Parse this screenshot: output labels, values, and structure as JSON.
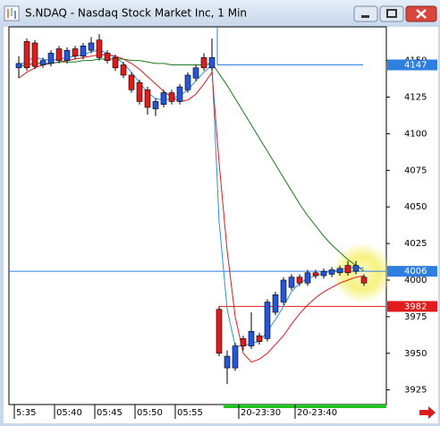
{
  "chart_data": {
    "type": "candlestick",
    "title": "S.NDAQ - Nasdaq Stock Market Inc, 1 Min",
    "categories": [
      "5:35",
      null,
      null,
      null,
      null,
      "05:40",
      null,
      null,
      null,
      null,
      "05:45",
      null,
      null,
      null,
      null,
      "05:50",
      null,
      null,
      null,
      null,
      "05:55",
      null,
      null,
      null,
      null,
      null,
      null,
      null,
      "20-23:30",
      null,
      null,
      null,
      null,
      null,
      null,
      "20-23:40",
      null,
      null,
      null,
      null,
      null,
      null,
      null,
      null
    ],
    "open": [
      4145,
      4163,
      4162,
      4147,
      4148,
      4158,
      4150,
      4158,
      4153,
      4157,
      4164,
      4155,
      4152,
      4147,
      4140,
      4135,
      4130,
      4117,
      4120,
      4128,
      4122,
      4130,
      4138,
      4152,
      4145,
      3980,
      3940,
      3940,
      3960,
      3955,
      3962,
      3960,
      3978,
      3985,
      3995,
      4002,
      3998,
      4005,
      4003,
      4004,
      4005,
      4010,
      4006,
      4002
    ],
    "high": [
      4153,
      4165,
      4164,
      4152,
      4157,
      4160,
      4159,
      4160,
      4162,
      4166,
      4168,
      4157,
      4154,
      4149,
      4142,
      4137,
      4132,
      4124,
      4130,
      4130,
      4134,
      4142,
      4147,
      4155,
      4165,
      3982,
      3952,
      3957,
      3962,
      3978,
      3964,
      3987,
      3992,
      4002,
      4004,
      4004,
      4007,
      4007,
      4008,
      4009,
      4010,
      4013,
      4013,
      4004
    ],
    "low": [
      4138,
      4143,
      4144,
      4145,
      4146,
      4148,
      4148,
      4151,
      4151,
      4155,
      4150,
      4148,
      4143,
      4138,
      4128,
      4120,
      4113,
      4112,
      4118,
      4120,
      4120,
      4128,
      4136,
      4143,
      4143,
      3948,
      3929,
      3938,
      3952,
      3953,
      3956,
      3958,
      3976,
      3983,
      3993,
      3996,
      3996,
      4001,
      4001,
      4002,
      4003,
      4003,
      4004,
      3996
    ],
    "close": [
      4148,
      4145,
      4146,
      4150,
      4155,
      4150,
      4157,
      4153,
      4160,
      4162,
      4152,
      4150,
      4145,
      4140,
      4130,
      4122,
      4118,
      4122,
      4128,
      4122,
      4132,
      4140,
      4145,
      4145,
      4152,
      3950,
      3948,
      3955,
      3955,
      3965,
      3958,
      3985,
      3990,
      4000,
      4002,
      3998,
      4005,
      4003,
      4006,
      4007,
      4008,
      4005,
      4010,
      3998
    ],
    "up_color": "#2855d8",
    "down_color": "#e01b1b",
    "lines": [
      {
        "color": "#2f8fe0",
        "values": [
          4146,
          4150,
          4152,
          4151,
          4150,
          4151,
          4152,
          4153,
          4154,
          4156,
          4157,
          4155,
          4152,
          4148,
          4142,
          4135,
          4128,
          4124,
          4123,
          4124,
          4126,
          4130,
          4136,
          4142,
          4147,
          4040,
          3980,
          3955,
          3955,
          3957,
          3958,
          3965,
          3973,
          3982,
          3992,
          3998,
          4001,
          4003,
          4005,
          4006,
          4007,
          4008,
          4009,
          4008
        ]
      },
      {
        "color": "#e01b1b",
        "values": [
          4138,
          4142,
          4145,
          4147,
          4148,
          4149,
          4150,
          4151,
          4152,
          4153,
          4154,
          4154,
          4153,
          4151,
          4148,
          4144,
          4139,
          4134,
          4129,
          4125,
          4122,
          4123,
          4127,
          4134,
          4142,
          4080,
          4020,
          3975,
          3950,
          3944,
          3946,
          3950,
          3956,
          3962,
          3970,
          3977,
          3983,
          3988,
          3992,
          3995,
          3998,
          4000,
          4002,
          4003
        ]
      },
      {
        "color": "#1f7a1f",
        "values": [
          4146,
          4147,
          4148,
          4148,
          4148,
          4149,
          4149,
          4149,
          4150,
          4150,
          4151,
          4151,
          4151,
          4151,
          4150,
          4150,
          4149,
          4148,
          4148,
          4147,
          4147,
          4147,
          4147,
          4147,
          4148,
          4141,
          4133,
          4124,
          4115,
          4106,
          4097,
          4088,
          4079,
          4070,
          4061,
          4052,
          4044,
          4037,
          4030,
          4024,
          4019,
          4014,
          4010,
          4006
        ]
      }
    ],
    "levels": [
      {
        "value": 4147,
        "color": "#2f7fe0"
      },
      {
        "value": 4006,
        "color": "#2f7fe0"
      },
      {
        "value": 3982,
        "color": "#e01b1b"
      }
    ],
    "ylim": [
      3915,
      4173
    ],
    "yticks": [
      3925,
      3950,
      3975,
      4000,
      4025,
      4050,
      4075,
      4100,
      4125,
      4150
    ]
  }
}
